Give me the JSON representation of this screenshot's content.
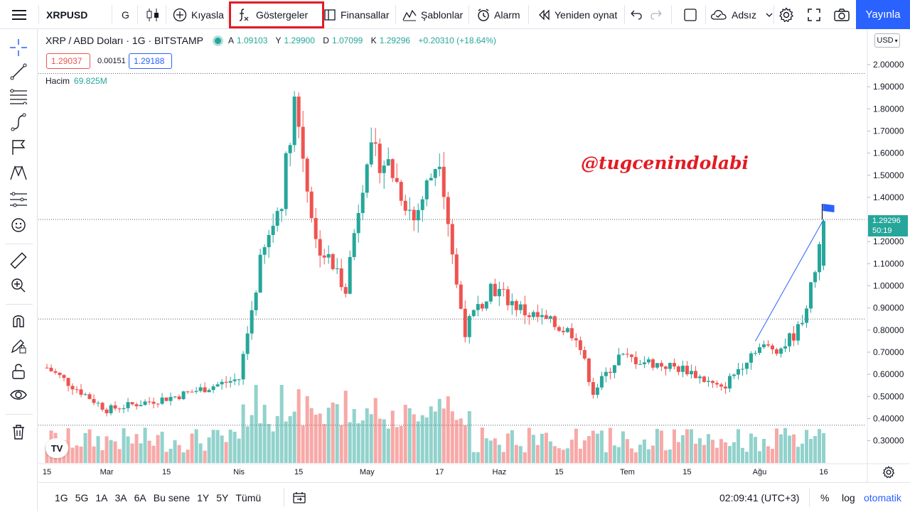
{
  "topbar": {
    "symbol": "XRPUSD",
    "interval": "G",
    "compare_label": "Kıyasla",
    "indicators_label": "Göstergeler",
    "financials_label": "Finansallar",
    "templates_label": "Şablonlar",
    "alert_label": "Alarm",
    "replay_label": "Yeniden oynat",
    "layout_name": "Adsız",
    "publish_label": "Yayınla"
  },
  "legend": {
    "title": "XRP / ABD Doları · 1G · BITSTAMP",
    "open_key": "A",
    "open": "1.09103",
    "high_key": "Y",
    "high": "1.29900",
    "low_key": "D",
    "low": "1.07099",
    "close_key": "K",
    "close": "1.29296",
    "change": "+0.20310 (+18.64%)",
    "sell_price": "1.29037",
    "spread": "0.00151",
    "buy_price": "1.29188",
    "volume_label": "Hacim",
    "volume_value": "69.825M"
  },
  "watermark_text": "@tugcenindolabi",
  "price_axis": {
    "currency": "USD",
    "last_price": "1.29296",
    "countdown": "50:19"
  },
  "bottombar": {
    "ranges": [
      "1G",
      "5G",
      "1A",
      "3A",
      "6A",
      "Bu sene",
      "1Y",
      "5Y",
      "Tümü"
    ],
    "clock": "02:09:41 (UTC+3)",
    "percent_label": "%",
    "log_label": "log",
    "auto_label": "otomatik"
  },
  "colors": {
    "up": "#26a69a",
    "down": "#ef5350",
    "accent": "#2962ff",
    "highlight": "#e31b23"
  },
  "chart_data": {
    "type": "candlestick",
    "symbol": "XRPUSD",
    "ylim": [
      0.24,
      2.06
    ],
    "y_ticks": [
      0.3,
      0.4,
      0.5,
      0.6,
      0.7,
      0.8,
      0.9,
      1.0,
      1.1,
      1.2,
      1.3,
      1.4,
      1.5,
      1.6,
      1.7,
      1.8,
      1.9,
      2.0
    ],
    "y_tick_labels": [
      "0.30000",
      "0.40000",
      "0.50000",
      "0.60000",
      "0.70000",
      "0.80000",
      "0.90000",
      "1.00000",
      "1.10000",
      "1.20000",
      "1.30000",
      "1.40000",
      "1.50000",
      "1.60000",
      "1.70000",
      "1.80000",
      "1.90000",
      "2.00000"
    ],
    "x_ticks": [
      {
        "label": "15",
        "day": 0
      },
      {
        "label": "Mar",
        "day": 14
      },
      {
        "label": "15",
        "day": 28
      },
      {
        "label": "Nis",
        "day": 45
      },
      {
        "label": "15",
        "day": 59
      },
      {
        "label": "May",
        "day": 75
      },
      {
        "label": "17",
        "day": 92
      },
      {
        "label": "Haz",
        "day": 106
      },
      {
        "label": "15",
        "day": 120
      },
      {
        "label": "Tem",
        "day": 136
      },
      {
        "label": "15",
        "day": 150
      },
      {
        "label": "Ağu",
        "day": 167
      },
      {
        "label": "16",
        "day": 182
      }
    ],
    "x_range_days": [
      0,
      191
    ],
    "key_prices": [
      {
        "day": 0,
        "price": 0.63
      },
      {
        "day": 14,
        "price": 0.44
      },
      {
        "day": 30,
        "price": 0.5
      },
      {
        "day": 45,
        "price": 0.58
      },
      {
        "day": 50,
        "price": 1.1
      },
      {
        "day": 55,
        "price": 1.4
      },
      {
        "day": 58,
        "price": 1.85
      },
      {
        "day": 63,
        "price": 1.2
      },
      {
        "day": 70,
        "price": 1.0
      },
      {
        "day": 75,
        "price": 1.6
      },
      {
        "day": 80,
        "price": 1.55
      },
      {
        "day": 86,
        "price": 1.3
      },
      {
        "day": 92,
        "price": 1.6
      },
      {
        "day": 96,
        "price": 1.0
      },
      {
        "day": 98,
        "price": 0.8
      },
      {
        "day": 104,
        "price": 1.0
      },
      {
        "day": 112,
        "price": 0.88
      },
      {
        "day": 124,
        "price": 0.78
      },
      {
        "day": 128,
        "price": 0.52
      },
      {
        "day": 134,
        "price": 0.68
      },
      {
        "day": 150,
        "price": 0.62
      },
      {
        "day": 158,
        "price": 0.53
      },
      {
        "day": 166,
        "price": 0.72
      },
      {
        "day": 172,
        "price": 0.72
      },
      {
        "day": 176,
        "price": 0.8
      },
      {
        "day": 179,
        "price": 0.98
      },
      {
        "day": 182,
        "price": 1.29
      }
    ],
    "last_price": 1.29296,
    "horizontal_lines": [
      1.96,
      1.3,
      0.85,
      0.37
    ],
    "trend_line": [
      {
        "day": 166,
        "price": 0.75
      },
      {
        "day": 182,
        "price": 1.3
      }
    ]
  }
}
